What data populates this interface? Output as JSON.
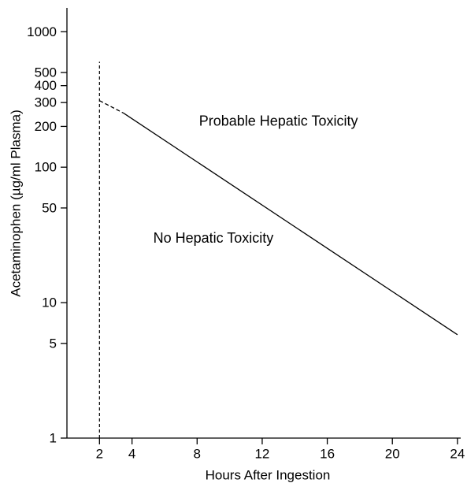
{
  "chart_data": {
    "type": "line",
    "title": "",
    "xlabel": "Hours After Ingestion",
    "ylabel": "Acetaminophen (µg/ml Plasma)",
    "y_scale": "log",
    "xlim": [
      0,
      24.2
    ],
    "ylim": [
      1,
      1500
    ],
    "x_ticks": [
      2,
      4,
      8,
      12,
      16,
      20,
      24
    ],
    "y_ticks": [
      1,
      5,
      10,
      50,
      100,
      200,
      300,
      400,
      500,
      1000
    ],
    "series": [
      {
        "style": "dashed",
        "points": [
          [
            2,
            310
          ],
          [
            3.5,
            250
          ]
        ]
      },
      {
        "style": "solid",
        "points": [
          [
            3.5,
            250
          ],
          [
            24,
            5.8
          ]
        ]
      }
    ],
    "reference_lines": [
      {
        "orientation": "vertical",
        "x": 2,
        "y_range": [
          1,
          600
        ],
        "style": "dashed"
      }
    ],
    "annotations": [
      {
        "text": "Probable Hepatic Toxicity",
        "x": 13,
        "y": 220
      },
      {
        "text": "No Hepatic Toxicity",
        "x": 9,
        "y": 30
      }
    ],
    "grid": false,
    "legend": "none"
  }
}
